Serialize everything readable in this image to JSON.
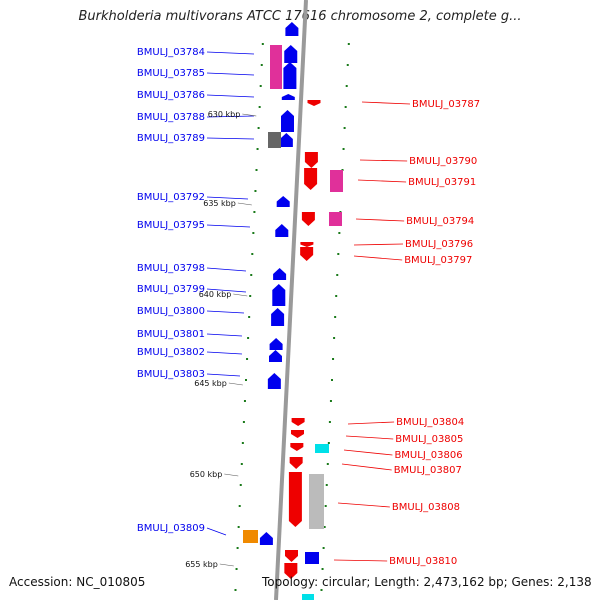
{
  "title": "Burkholderia multivorans ATCC 17616 chromosome 2, complete g...",
  "footer": {
    "accession": "Accession: NC_010805",
    "topology": "Topology: circular; Length: 2,473,162 bp; Genes: 2,138"
  },
  "colors": {
    "backbone": "#9a9a9a",
    "forward_gene": "#0000ee",
    "reverse_gene": "#ee0000",
    "tick": "#1a7a1a",
    "magenta": "#e0309a",
    "grey": "#666666",
    "orange": "#f08a00",
    "cyan": "#00e0e8"
  },
  "scale_labels": [
    "630 kbp",
    "635 kbp",
    "640 kbp",
    "645 kbp",
    "650 kbp",
    "655 kbp"
  ],
  "left_genes": [
    "BMULJ_03784",
    "BMULJ_03785",
    "BMULJ_03786",
    "BMULJ_03788",
    "BMULJ_03789",
    "BMULJ_03792",
    "BMULJ_03795",
    "BMULJ_03798",
    "BMULJ_03799",
    "BMULJ_03800",
    "BMULJ_03801",
    "BMULJ_03802",
    "BMULJ_03803",
    "BMULJ_03809"
  ],
  "right_genes": [
    "BMULJ_03787",
    "BMULJ_03790",
    "BMULJ_03791",
    "BMULJ_03794",
    "BMULJ_03796",
    "BMULJ_03797",
    "BMULJ_03804",
    "BMULJ_03805",
    "BMULJ_03806",
    "BMULJ_03807",
    "BMULJ_03808",
    "BMULJ_03810"
  ]
}
